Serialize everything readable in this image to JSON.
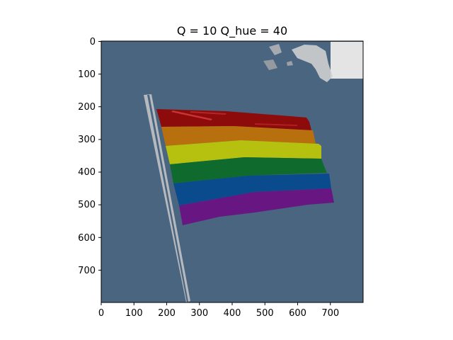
{
  "figure": {
    "title": "Q = 10 Q_hue = 40"
  },
  "axes": {
    "xlim": [
      0,
      800
    ],
    "ylim": [
      0,
      800
    ],
    "y_inverted": true,
    "x_ticks": [
      "0",
      "100",
      "200",
      "300",
      "400",
      "500",
      "600",
      "700"
    ],
    "y_ticks": [
      "0",
      "100",
      "200",
      "300",
      "400",
      "500",
      "600",
      "700"
    ]
  },
  "image": {
    "description_colors": {
      "sky": "#4a6580",
      "red": "#8e0b0b",
      "orange": "#b8700f",
      "yellow": "#b5c10e",
      "green": "#0f6a2e",
      "blue": "#0a4b8e",
      "purple": "#681782",
      "pole": "#d8d8d8",
      "building": "#e4e4e4"
    }
  }
}
